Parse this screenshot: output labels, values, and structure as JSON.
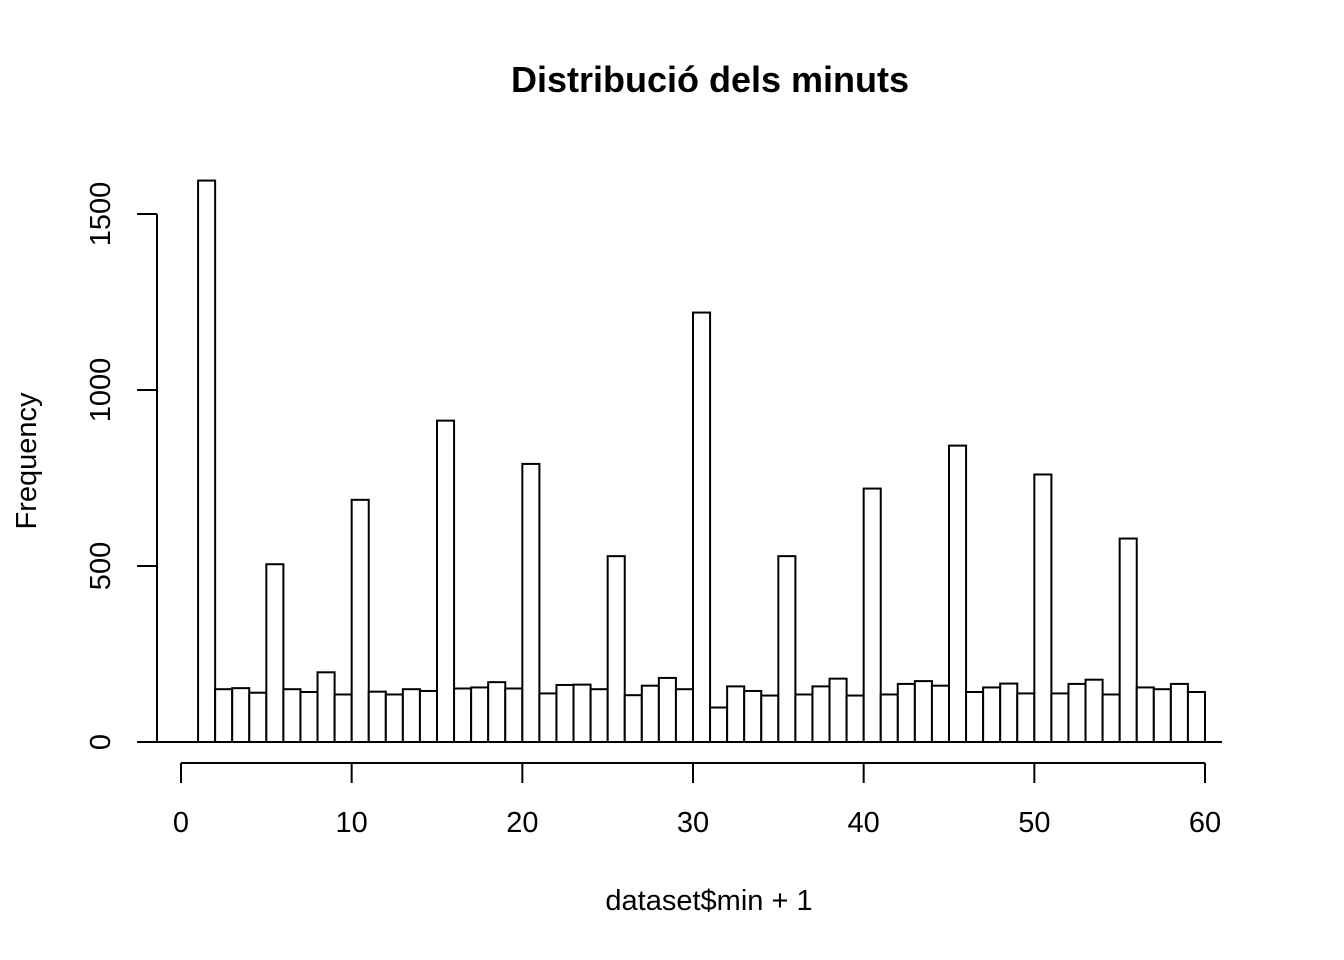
{
  "chart_data": {
    "type": "bar",
    "title": "Distribució dels minuts",
    "xlabel": "dataset$min + 1",
    "ylabel": "Frequency",
    "xlim": [
      0,
      60
    ],
    "ylim": [
      0,
      1600
    ],
    "x_ticks": [
      0,
      10,
      20,
      30,
      40,
      50,
      60
    ],
    "y_ticks": [
      0,
      500,
      1000,
      1500
    ],
    "bin_width": 1,
    "bin_start": 1,
    "values": [
      1595,
      150,
      153,
      140,
      505,
      150,
      142,
      198,
      135,
      688,
      143,
      135,
      150,
      145,
      913,
      152,
      155,
      170,
      152,
      790,
      138,
      162,
      163,
      150,
      528,
      133,
      160,
      182,
      150,
      1220,
      98,
      158,
      145,
      132,
      528,
      135,
      158,
      180,
      132,
      720,
      135,
      165,
      173,
      160,
      842,
      142,
      155,
      166,
      138,
      760,
      138,
      165,
      177,
      135,
      578,
      155,
      150,
      165,
      142
    ],
    "grid": false,
    "legend": false,
    "bar_fill": "#ffffff",
    "bar_stroke": "#000000"
  }
}
